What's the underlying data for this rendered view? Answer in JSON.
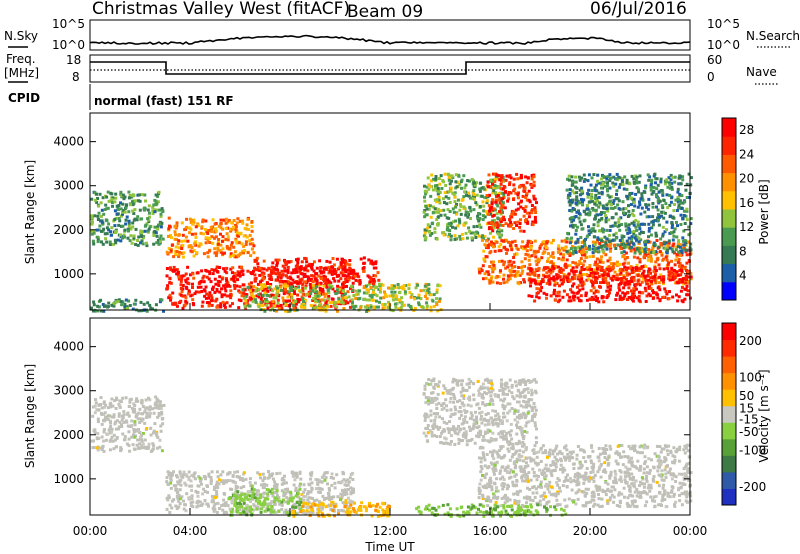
{
  "header": {
    "title": "Christmas Valley West (fitACF)",
    "beam": "Beam 09",
    "date": "06/Jul/2016"
  },
  "noise_panel": {
    "left_label": "N.Sky",
    "right_label": "N.Search",
    "left_ticks": [
      "10^5",
      "10^0"
    ],
    "right_ticks": [
      "10^5",
      "10^0"
    ]
  },
  "freq_panel": {
    "left_label_1": "Freq.",
    "left_label_2": "[MHz]",
    "right_label": "Nave",
    "left_ticks": [
      "18",
      "8"
    ],
    "right_ticks": [
      "60",
      "0"
    ]
  },
  "cpid_panel": {
    "label": "CPID",
    "mode_text": "normal (fast) 151 RF"
  },
  "colors": {
    "power_scale": [
      "#0000ff",
      "#1d5ea8",
      "#357a52",
      "#4a9a52",
      "#8fc43c",
      "#ffc000",
      "#ff9000",
      "#ff5a00",
      "#ff2400",
      "#ff0000"
    ],
    "velocity_scale": [
      "#2030c0",
      "#2f5aa8",
      "#3d7a45",
      "#58a038",
      "#88d040",
      "#c8c8c0",
      "#ffc000",
      "#ff9000",
      "#ff6000",
      "#ff2a00",
      "#ff0000"
    ],
    "ground_scatter": "#c0c0b8"
  },
  "chart_data": [
    {
      "type": "heatmap",
      "name": "power",
      "xlabel": "Time UT",
      "ylabel": "Slant Range [km]",
      "xlim": [
        "00:00",
        "24:00"
      ],
      "ylim": [
        180,
        4650
      ],
      "x_ticks": [
        "00:00",
        "04:00",
        "08:00",
        "12:00",
        "16:00",
        "20:00",
        "00:00"
      ],
      "y_ticks": [
        1000,
        2000,
        3000,
        4000
      ],
      "colorbar_label": "Power [dB]",
      "colorbar_ticks": [
        4,
        8,
        12,
        16,
        20,
        24,
        28
      ],
      "colorbar_range": [
        0,
        30
      ],
      "regions": [
        {
          "t0": 0.0,
          "t1": 2.9,
          "r0": 1650,
          "r1": 2900,
          "value": 10
        },
        {
          "t0": 0.0,
          "t1": 2.9,
          "r0": 180,
          "r1": 450,
          "value": 8
        },
        {
          "t0": 3.0,
          "t1": 10.5,
          "r0": 250,
          "r1": 1200,
          "value": 28
        },
        {
          "t0": 3.0,
          "t1": 6.5,
          "r0": 1400,
          "r1": 2300,
          "value": 20
        },
        {
          "t0": 6.0,
          "t1": 14.0,
          "r0": 180,
          "r1": 800,
          "value": 14
        },
        {
          "t0": 6.5,
          "t1": 11.5,
          "r0": 800,
          "r1": 1400,
          "value": 28
        },
        {
          "t0": 13.3,
          "t1": 16.5,
          "r0": 1800,
          "r1": 3300,
          "value": 12
        },
        {
          "t0": 15.8,
          "t1": 17.8,
          "r0": 2000,
          "r1": 3300,
          "value": 26
        },
        {
          "t0": 15.5,
          "t1": 24.0,
          "r0": 800,
          "r1": 1800,
          "value": 22
        },
        {
          "t0": 17.5,
          "t1": 24.0,
          "r0": 400,
          "r1": 1200,
          "value": 28
        },
        {
          "t0": 19.0,
          "t1": 24.0,
          "r0": 1500,
          "r1": 3300,
          "value": 8
        }
      ]
    },
    {
      "type": "heatmap",
      "name": "velocity",
      "xlabel": "Time UT",
      "ylabel": "Slant Range [km]",
      "xlim": [
        "00:00",
        "24:00"
      ],
      "ylim": [
        180,
        4650
      ],
      "x_ticks": [
        "00:00",
        "04:00",
        "08:00",
        "12:00",
        "16:00",
        "20:00",
        "00:00"
      ],
      "y_ticks": [
        1000,
        2000,
        3000,
        4000
      ],
      "colorbar_label": "Velocity [m s⁻¹]",
      "colorbar_ticks": [
        200,
        100,
        50,
        15,
        -15,
        -50,
        -100,
        -200
      ],
      "colorbar_range": [
        -250,
        250
      ],
      "regions": [
        {
          "t0": 0.0,
          "t1": 2.9,
          "r0": 1650,
          "r1": 2900,
          "value": 0
        },
        {
          "t0": 3.0,
          "t1": 10.5,
          "r0": 250,
          "r1": 1200,
          "value": 0
        },
        {
          "t0": 5.5,
          "t1": 8.5,
          "r0": 200,
          "r1": 800,
          "value": -50
        },
        {
          "t0": 8.0,
          "t1": 12.0,
          "r0": 180,
          "r1": 500,
          "value": 60
        },
        {
          "t0": 13.3,
          "t1": 17.8,
          "r0": 1800,
          "r1": 3300,
          "value": 0
        },
        {
          "t0": 15.5,
          "t1": 24.0,
          "r0": 400,
          "r1": 1800,
          "value": 0
        },
        {
          "t0": 13.0,
          "t1": 19.0,
          "r0": 180,
          "r1": 450,
          "value": -60
        }
      ]
    }
  ]
}
